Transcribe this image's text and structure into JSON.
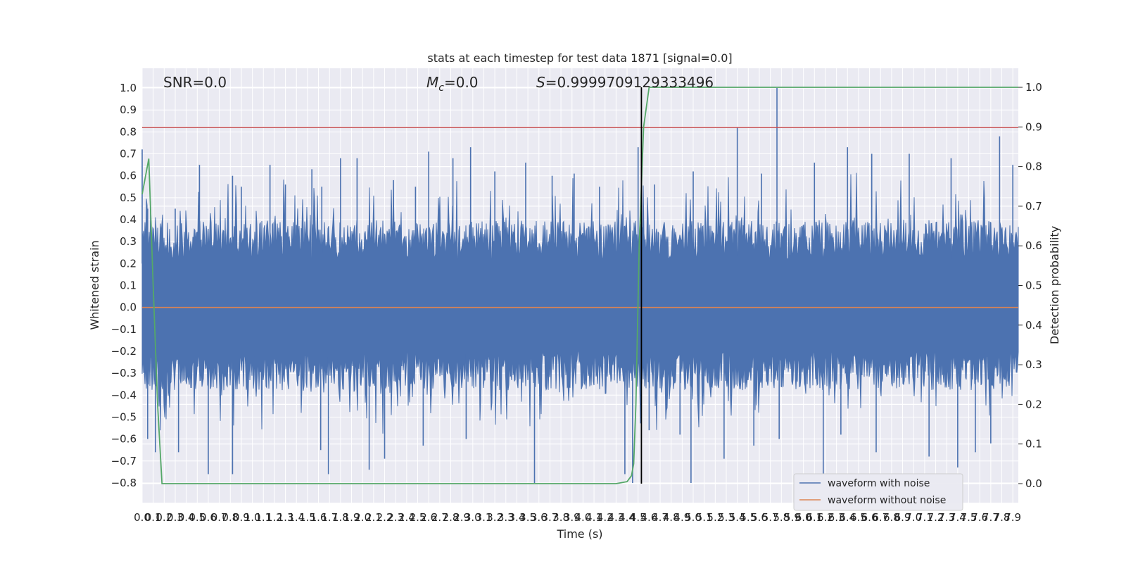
{
  "chart_data": {
    "type": "line",
    "title": "stats at each timestep for test data 1871 [signal=0.0]",
    "xlabel": "Time (s)",
    "ylabel": "Whitened strain",
    "y2label": "Detection probability",
    "xlim": [
      0.0,
      7.95
    ],
    "ylim": [
      -0.89,
      1.09
    ],
    "y2lim": [
      -0.048,
      1.048
    ],
    "grid": true,
    "x_ticks_label": [
      "0.0",
      "0.1",
      "0.2",
      "0.3",
      "0.4",
      "0.5",
      "0.6",
      "0.7",
      "0.8",
      "0.9",
      "1.0",
      "1.1",
      "1.2",
      "1.3",
      "1.4",
      "1.5",
      "1.6",
      "1.7",
      "1.8",
      "1.9",
      "2.0",
      "2.1",
      "2.2",
      "2.3",
      "2.4",
      "2.5",
      "2.6",
      "2.7",
      "2.8",
      "2.9",
      "3.0",
      "3.1",
      "3.2",
      "3.3",
      "3.4",
      "3.5",
      "3.6",
      "3.7",
      "3.8",
      "3.9",
      "4.0",
      "4.1",
      "4.2",
      "4.3",
      "4.4",
      "4.5",
      "4.6",
      "4.7",
      "4.8",
      "4.9",
      "5.0",
      "5.1",
      "5.2",
      "5.3",
      "5.4",
      "5.5",
      "5.6",
      "5.7",
      "5.8",
      "5.9",
      "6.0",
      "6.1",
      "6.2",
      "6.3",
      "6.4",
      "6.5",
      "6.6",
      "6.7",
      "6.8",
      "6.9",
      "7.0",
      "7.1",
      "7.2",
      "7.3",
      "7.4",
      "7.5",
      "7.6",
      "7.7",
      "7.8",
      "7.9"
    ],
    "y_ticks": [
      "-0.8",
      "-0.7",
      "-0.6",
      "-0.5",
      "-0.4",
      "-0.3",
      "-0.2",
      "-0.1",
      "0.0",
      "0.1",
      "0.2",
      "0.3",
      "0.4",
      "0.5",
      "0.6",
      "0.7",
      "0.8",
      "0.9",
      "1.0"
    ],
    "y2_ticks": [
      "0.0",
      "0.1",
      "0.2",
      "0.3",
      "0.4",
      "0.5",
      "0.6",
      "0.7",
      "0.8",
      "0.9",
      "1.0"
    ],
    "annotations": {
      "snr": "SNR=0.0",
      "mc": "$M_c$=0.0",
      "mc_symbol": "M",
      "mc_subscript": "c",
      "mc_value": "=0.0",
      "s_symbol": "S",
      "s_value": "=0.9999709129333496"
    },
    "threshold_line": {
      "y": 0.82,
      "color": "#c44e52"
    },
    "vertical_marker": {
      "x": 4.53,
      "color": "#000000"
    },
    "series": [
      {
        "name": "waveform with noise",
        "color": "#4c72b0",
        "axis": "left",
        "kind": "noise",
        "envelope": {
          "upper_typical": 0.28,
          "lower_typical": -0.26,
          "max": 1.0,
          "min": -0.8
        },
        "spikes_up": [
          [
            0.0,
            0.72
          ],
          [
            0.05,
            0.45
          ],
          [
            0.3,
            0.45
          ],
          [
            0.52,
            0.65
          ],
          [
            0.82,
            0.6
          ],
          [
            0.9,
            0.55
          ],
          [
            1.16,
            0.65
          ],
          [
            1.3,
            0.56
          ],
          [
            1.54,
            0.63
          ],
          [
            1.63,
            0.55
          ],
          [
            1.8,
            0.68
          ],
          [
            1.95,
            0.68
          ],
          [
            2.28,
            0.58
          ],
          [
            2.48,
            0.55
          ],
          [
            2.6,
            0.71
          ],
          [
            2.82,
            0.68
          ],
          [
            2.98,
            0.73
          ],
          [
            3.2,
            0.62
          ],
          [
            3.48,
            0.66
          ],
          [
            3.72,
            0.6
          ],
          [
            3.92,
            0.61
          ],
          [
            4.15,
            0.55
          ],
          [
            4.5,
            0.73
          ],
          [
            4.65,
            0.56
          ],
          [
            5.0,
            0.62
          ],
          [
            5.4,
            0.82
          ],
          [
            5.62,
            0.61
          ],
          [
            5.76,
            1.0
          ],
          [
            6.1,
            0.66
          ],
          [
            6.4,
            0.73
          ],
          [
            6.62,
            0.7
          ],
          [
            6.96,
            0.7
          ],
          [
            7.34,
            0.68
          ],
          [
            7.78,
            0.78
          ],
          [
            7.9,
            0.65
          ]
        ],
        "spikes_down": [
          [
            0.05,
            -0.6
          ],
          [
            0.12,
            -0.66
          ],
          [
            0.33,
            -0.66
          ],
          [
            0.6,
            -0.76
          ],
          [
            0.82,
            -0.76
          ],
          [
            1.62,
            -0.65
          ],
          [
            1.69,
            -0.76
          ],
          [
            2.06,
            -0.74
          ],
          [
            2.2,
            -0.69
          ],
          [
            2.55,
            -0.63
          ],
          [
            2.94,
            -0.6
          ],
          [
            3.56,
            -0.8
          ],
          [
            4.38,
            -0.76
          ],
          [
            4.45,
            -0.8
          ],
          [
            4.6,
            -0.56
          ],
          [
            4.88,
            -0.58
          ],
          [
            4.98,
            -0.8
          ],
          [
            5.28,
            -0.69
          ],
          [
            5.55,
            -0.63
          ],
          [
            5.78,
            -0.6
          ],
          [
            6.18,
            -0.76
          ],
          [
            6.34,
            -0.58
          ],
          [
            6.66,
            -0.66
          ],
          [
            7.14,
            -0.68
          ],
          [
            7.4,
            -0.73
          ],
          [
            7.56,
            -0.66
          ],
          [
            7.7,
            -0.62
          ]
        ]
      },
      {
        "name": "waveform without noise",
        "color": "#dd8452",
        "axis": "left",
        "kind": "line",
        "points": [
          [
            0.0,
            0.0
          ],
          [
            7.95,
            0.0
          ]
        ]
      },
      {
        "color": "#55a868",
        "axis": "right",
        "kind": "line",
        "points": [
          [
            0.0,
            0.73
          ],
          [
            0.06,
            0.82
          ],
          [
            0.1,
            0.5
          ],
          [
            0.14,
            0.2
          ],
          [
            0.18,
            0.0
          ],
          [
            4.3,
            0.0
          ],
          [
            4.4,
            0.005
          ],
          [
            4.44,
            0.02
          ],
          [
            4.46,
            0.05
          ],
          [
            4.48,
            0.2
          ],
          [
            4.51,
            0.6
          ],
          [
            4.55,
            0.9
          ],
          [
            4.6,
            1.0
          ],
          [
            7.95,
            1.0
          ]
        ]
      }
    ],
    "legend": {
      "position": "lower-right",
      "entries": [
        "waveform with noise",
        "waveform without noise"
      ]
    }
  }
}
